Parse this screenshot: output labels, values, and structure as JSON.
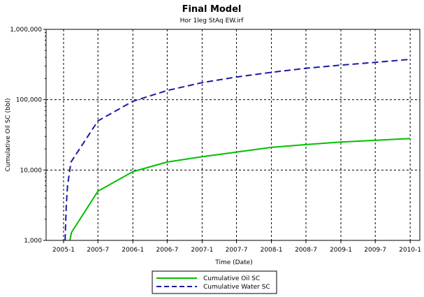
{
  "colors": {
    "oil": "#00c000",
    "water": "#1a1aa6",
    "grid": "#000000",
    "axis": "#000000"
  },
  "chart_data": {
    "type": "line",
    "title": "Final Model",
    "subtitle": "Hor 1leg StAq EW.irf",
    "xlabel": "Time (Date)",
    "ylabel": "Cumulative Oil SC (bbl)",
    "yscale": "log",
    "ylim": [
      1000,
      1000000
    ],
    "xlim": [
      "2005-01",
      "2010-01"
    ],
    "grid": true,
    "legend_position": "bottom-center",
    "x_ticks": [
      "2005-1",
      "2005-7",
      "2006-1",
      "2006-7",
      "2007-1",
      "2007-7",
      "2008-1",
      "2008-7",
      "2009-1",
      "2009-7",
      "2010-1"
    ],
    "y_ticks": [
      "1,000",
      "10,000",
      "100,000",
      "1,000,000"
    ],
    "series": [
      {
        "name": "Cumulative Oil SC",
        "color": "#00c000",
        "dash": "solid",
        "points": [
          [
            "2005-02-03",
            1000
          ],
          [
            "2005-02-12",
            1300
          ],
          [
            "2005-07-01",
            5000
          ],
          [
            "2006-01-01",
            9500
          ],
          [
            "2006-07-01",
            13000
          ],
          [
            "2007-01-01",
            15500
          ],
          [
            "2007-07-01",
            18000
          ],
          [
            "2008-01-01",
            21000
          ],
          [
            "2008-07-01",
            23000
          ],
          [
            "2009-01-01",
            25000
          ],
          [
            "2009-07-01",
            26500
          ],
          [
            "2010-01-01",
            28000
          ]
        ]
      },
      {
        "name": "Cumulative Water SC",
        "color": "#1a1aa6",
        "dash": "dashed",
        "points": [
          [
            "2005-01-09",
            1000
          ],
          [
            "2005-01-15",
            3000
          ],
          [
            "2005-01-22",
            6000
          ],
          [
            "2005-02-09",
            13000
          ],
          [
            "2005-07-01",
            50000
          ],
          [
            "2006-01-01",
            95000
          ],
          [
            "2006-07-01",
            135000
          ],
          [
            "2007-01-01",
            175000
          ],
          [
            "2007-07-01",
            210000
          ],
          [
            "2008-01-01",
            245000
          ],
          [
            "2008-07-01",
            280000
          ],
          [
            "2009-01-01",
            310000
          ],
          [
            "2009-07-01",
            340000
          ],
          [
            "2010-01-01",
            375000
          ]
        ]
      }
    ]
  }
}
